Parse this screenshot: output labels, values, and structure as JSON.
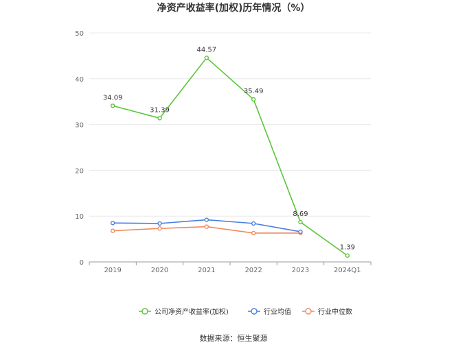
{
  "chart_data": {
    "type": "line",
    "title": "净资产收益率(加权)历年情况（%）",
    "categories": [
      "2019",
      "2020",
      "2021",
      "2022",
      "2023",
      "2024Q1"
    ],
    "ylim": [
      0,
      50
    ],
    "yticks": [
      0,
      10,
      20,
      30,
      40,
      50
    ],
    "grid": true,
    "legend_position": "bottom-center",
    "series": [
      {
        "name": "公司净资产收益率(加权)",
        "color": "#5bc63a",
        "values": [
          34.09,
          31.39,
          44.57,
          35.49,
          8.69,
          1.39
        ],
        "labels": [
          "34.09",
          "31.39",
          "44.57",
          "35.49",
          "8.69",
          "1.39"
        ]
      },
      {
        "name": "行业均值",
        "color": "#4a7fe0",
        "values": [
          8.5,
          8.4,
          9.2,
          8.4,
          6.6,
          null
        ]
      },
      {
        "name": "行业中位数",
        "color": "#f08a5d",
        "values": [
          6.8,
          7.3,
          7.7,
          6.3,
          6.3,
          null
        ]
      }
    ],
    "source": "数据来源：恒生聚源"
  }
}
